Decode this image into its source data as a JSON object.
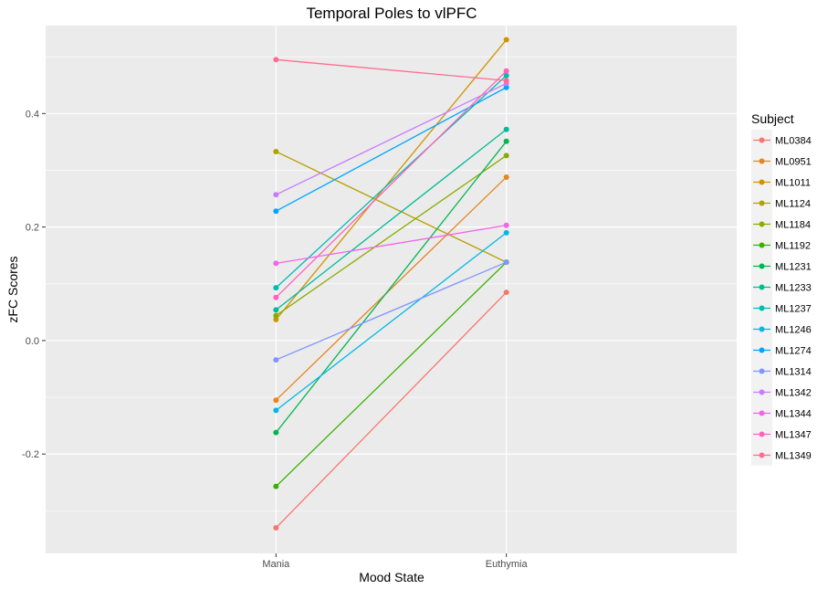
{
  "chart_data": {
    "type": "line",
    "title": "Temporal Poles to vlPFC",
    "xlabel": "Mood State",
    "ylabel": "zFC Scores",
    "categories": [
      "Mania",
      "Euthymia"
    ],
    "ylim": [
      -0.375,
      0.555
    ],
    "yticks": [
      -0.2,
      0.0,
      0.2,
      0.4
    ],
    "ytick_labels": [
      "-0.2",
      "0.0",
      "0.2",
      "0.4"
    ],
    "grid": true,
    "legend": {
      "title": "Subject",
      "position": "right"
    },
    "series": [
      {
        "name": "ML0384",
        "color": "#F8766D",
        "values": [
          -0.33,
          0.085
        ]
      },
      {
        "name": "ML0951",
        "color": "#E7851E",
        "values": [
          -0.105,
          0.288
        ]
      },
      {
        "name": "ML1011",
        "color": "#D09400",
        "values": [
          0.037,
          0.53
        ]
      },
      {
        "name": "ML1124",
        "color": "#B2A100",
        "values": [
          0.333,
          0.138
        ]
      },
      {
        "name": "ML1184",
        "color": "#8AAB00",
        "values": [
          0.044,
          0.326
        ]
      },
      {
        "name": "ML1192",
        "color": "#38B200",
        "values": [
          -0.257,
          0.138
        ]
      },
      {
        "name": "ML1231",
        "color": "#00B64E",
        "values": [
          -0.162,
          0.351
        ]
      },
      {
        "name": "ML1233",
        "color": "#00BB97",
        "values": [
          0.054,
          0.372
        ]
      },
      {
        "name": "ML1237",
        "color": "#00BCB3",
        "values": [
          0.093,
          0.467
        ]
      },
      {
        "name": "ML1246",
        "color": "#00B8E5",
        "values": [
          -0.123,
          0.19
        ]
      },
      {
        "name": "ML1274",
        "color": "#00A5FF",
        "values": [
          0.228,
          0.446
        ]
      },
      {
        "name": "ML1314",
        "color": "#7F96FF",
        "values": [
          -0.034,
          0.138
        ]
      },
      {
        "name": "ML1342",
        "color": "#C77CFF",
        "values": [
          0.257,
          0.453
        ]
      },
      {
        "name": "ML1344",
        "color": "#F265E7",
        "values": [
          0.136,
          0.203
        ]
      },
      {
        "name": "ML1347",
        "color": "#FF62BC",
        "values": [
          0.076,
          0.475
        ]
      },
      {
        "name": "ML1349",
        "color": "#FF6C91",
        "values": [
          0.495,
          0.458
        ]
      }
    ]
  }
}
